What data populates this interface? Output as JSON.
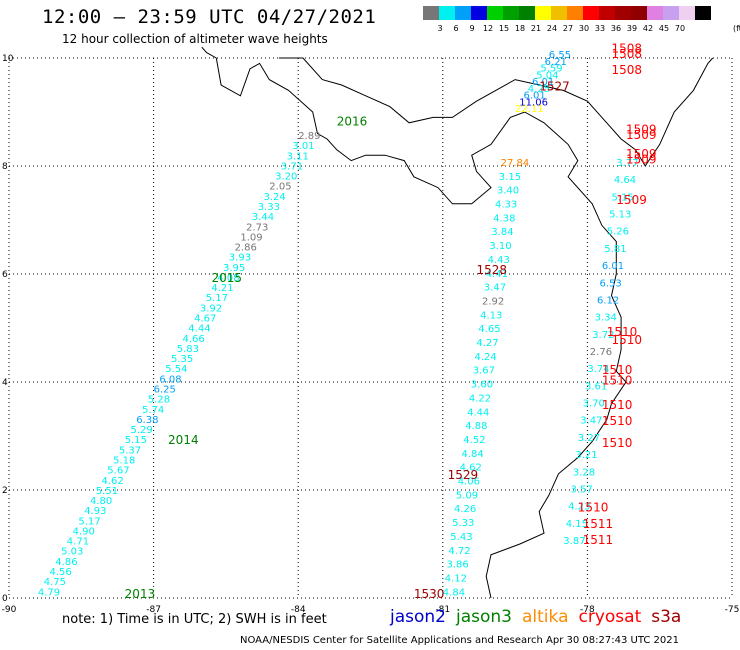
{
  "header": {
    "title": "12:00 – 23:59 UTC 04/27/2021",
    "subtitle": "12 hour collection of altimeter wave heights"
  },
  "scale": {
    "colors": [
      "#777777",
      "#00f0f0",
      "#00a0f8",
      "#0000e0",
      "#00d000",
      "#00a000",
      "#008000",
      "#ffff00",
      "#f0c000",
      "#ff8000",
      "#ff0000",
      "#c00000",
      "#a00000",
      "#900000",
      "#e080e0",
      "#c8a0f0",
      "#f0d0f0",
      "#000000"
    ],
    "labels": [
      "3",
      "6",
      "9",
      "12",
      "15",
      "18",
      "21",
      "24",
      "27",
      "30",
      "33",
      "36",
      "39",
      "42",
      "45",
      "70"
    ],
    "unit": "(ft)"
  },
  "map": {
    "lon_range": [
      -90,
      -75
    ],
    "lat_range": [
      0,
      10
    ],
    "x_ticks": [
      "-90",
      "-87",
      "-84",
      "-81",
      "-78",
      "-75"
    ],
    "y_ticks": [
      "0",
      "2",
      "4",
      "6",
      "8",
      "10"
    ],
    "grid": "dotted"
  },
  "tracks": [
    {
      "satellite": "jason3",
      "time_label": "2016",
      "label_color": "#008000",
      "start": [
        -89.4,
        0.05
      ],
      "end": [
        -84.0,
        8.5
      ],
      "values": [
        "4.79",
        "4.75",
        "4.56",
        "4.86",
        "5.03",
        "4.71",
        "4.90",
        "5.17",
        "4.93",
        "4.80",
        "5.51",
        "4.62",
        "5.67",
        "5.18",
        "5.37",
        "5.15",
        "5.29",
        "6.38",
        "5.74",
        "5.28",
        "6.25",
        "6.08",
        "5.54",
        "5.35",
        "5.83",
        "4.66",
        "4.44",
        "4.67",
        "3.92",
        "5.17",
        "4.21",
        "4.08",
        "3.95",
        "3.93",
        "2.86",
        "1.09",
        "2.73",
        "3.44",
        "3.33",
        "3.24",
        "2.05",
        "3.20",
        "3.71",
        "3.11",
        "3.01",
        "2.89"
      ]
    },
    {
      "satellite": "jason3",
      "time_label": "2015",
      "label_color": "#008000",
      "start": [
        -81.0,
        0.05
      ],
      "end": [
        -79.8,
        8.0
      ],
      "values": [
        "4.84",
        "4.12",
        "3.86",
        "4.72",
        "5.43",
        "5.33",
        "4.26",
        "5.09",
        "4.06",
        "4.62",
        "4.84",
        "4.52",
        "4.88",
        "4.44",
        "4.22",
        "3.60",
        "3.67",
        "4.24",
        "4.27",
        "4.65",
        "4.13",
        "2.92",
        "3.47",
        "4.41",
        "4.43",
        "3.10",
        "3.84",
        "4.38",
        "4.33",
        "3.40",
        "3.15",
        "27.84"
      ]
    },
    {
      "satellite": "jason3",
      "time_label": "2014",
      "label_color": "#008000",
      "start": [
        -78.5,
        1.0
      ],
      "end": [
        -77.4,
        8.0
      ],
      "values": [
        "3.87",
        "4.15",
        "4.23",
        "3.57",
        "3.28",
        "3.21",
        "3.27",
        "3.47",
        "3.70",
        "3.61",
        "3.74",
        "2.76",
        "3.72",
        "3.34",
        "6.12",
        "6.53",
        "6.01",
        "5.81",
        "5.26",
        "5.13",
        "5.15",
        "4.64",
        "3.77"
      ]
    },
    {
      "satellite": "jason3",
      "time_label": "2013",
      "label_color": "#008000",
      "start": [
        -79.5,
        9.0
      ],
      "end": [
        -78.8,
        10.0
      ],
      "values": [
        "22.11",
        "11.06",
        "6.01",
        "4.25",
        "6.01",
        "5.04",
        "5.59",
        "6.21",
        "6.55"
      ]
    }
  ],
  "cryosat": [
    {
      "label": "1530",
      "lon": -81.6,
      "lat": 0.0
    },
    {
      "label": "1529",
      "lon": -80.9,
      "lat": 2.2
    },
    {
      "label": "1528",
      "lon": -80.3,
      "lat": 6.0
    },
    {
      "label": "1527",
      "lon": -79.0,
      "lat": 9.4
    },
    {
      "label": "1511",
      "lon": -78.1,
      "lat": 1.0
    },
    {
      "label": "1511",
      "lon": -78.1,
      "lat": 1.3
    },
    {
      "label": "1510",
      "lon": -78.2,
      "lat": 1.6
    },
    {
      "label": "1510",
      "lon": -77.7,
      "lat": 2.8
    },
    {
      "label": "1510",
      "lon": -77.7,
      "lat": 3.2
    },
    {
      "label": "1510",
      "lon": -77.7,
      "lat": 3.5
    },
    {
      "label": "1510",
      "lon": -77.7,
      "lat": 3.95
    },
    {
      "label": "1510",
      "lon": -77.7,
      "lat": 4.15
    },
    {
      "label": "1510",
      "lon": -77.5,
      "lat": 4.7
    },
    {
      "label": "1510",
      "lon": -77.6,
      "lat": 4.85
    },
    {
      "label": "1509",
      "lon": -77.4,
      "lat": 7.3
    },
    {
      "label": "1509",
      "lon": -77.2,
      "lat": 8.05
    },
    {
      "label": "1509",
      "lon": -77.2,
      "lat": 8.15
    },
    {
      "label": "1509",
      "lon": -77.2,
      "lat": 8.5
    },
    {
      "label": "1509",
      "lon": -77.2,
      "lat": 8.6
    },
    {
      "label": "1508",
      "lon": -77.5,
      "lat": 9.7
    },
    {
      "label": "1508",
      "lon": -77.5,
      "lat": 10.0
    },
    {
      "label": "1508",
      "lon": -77.5,
      "lat": 10.1
    }
  ],
  "coastline_color": "#000000",
  "footer": {
    "note": "note:  1) Time is in UTC;  2) SWH is in feet",
    "satellites": [
      {
        "name": "jason2",
        "color": "#0000cc"
      },
      {
        "name": "jason3",
        "color": "#008000"
      },
      {
        "name": "altika",
        "color": "#ff8c00"
      },
      {
        "name": "cryosat",
        "color": "#ff0000"
      },
      {
        "name": "s3a",
        "color": "#a00000"
      }
    ],
    "credit": "NOAA/NESDIS Center for Satellite Applications and Research   Apr 30 08:27:43 UTC 2021"
  }
}
